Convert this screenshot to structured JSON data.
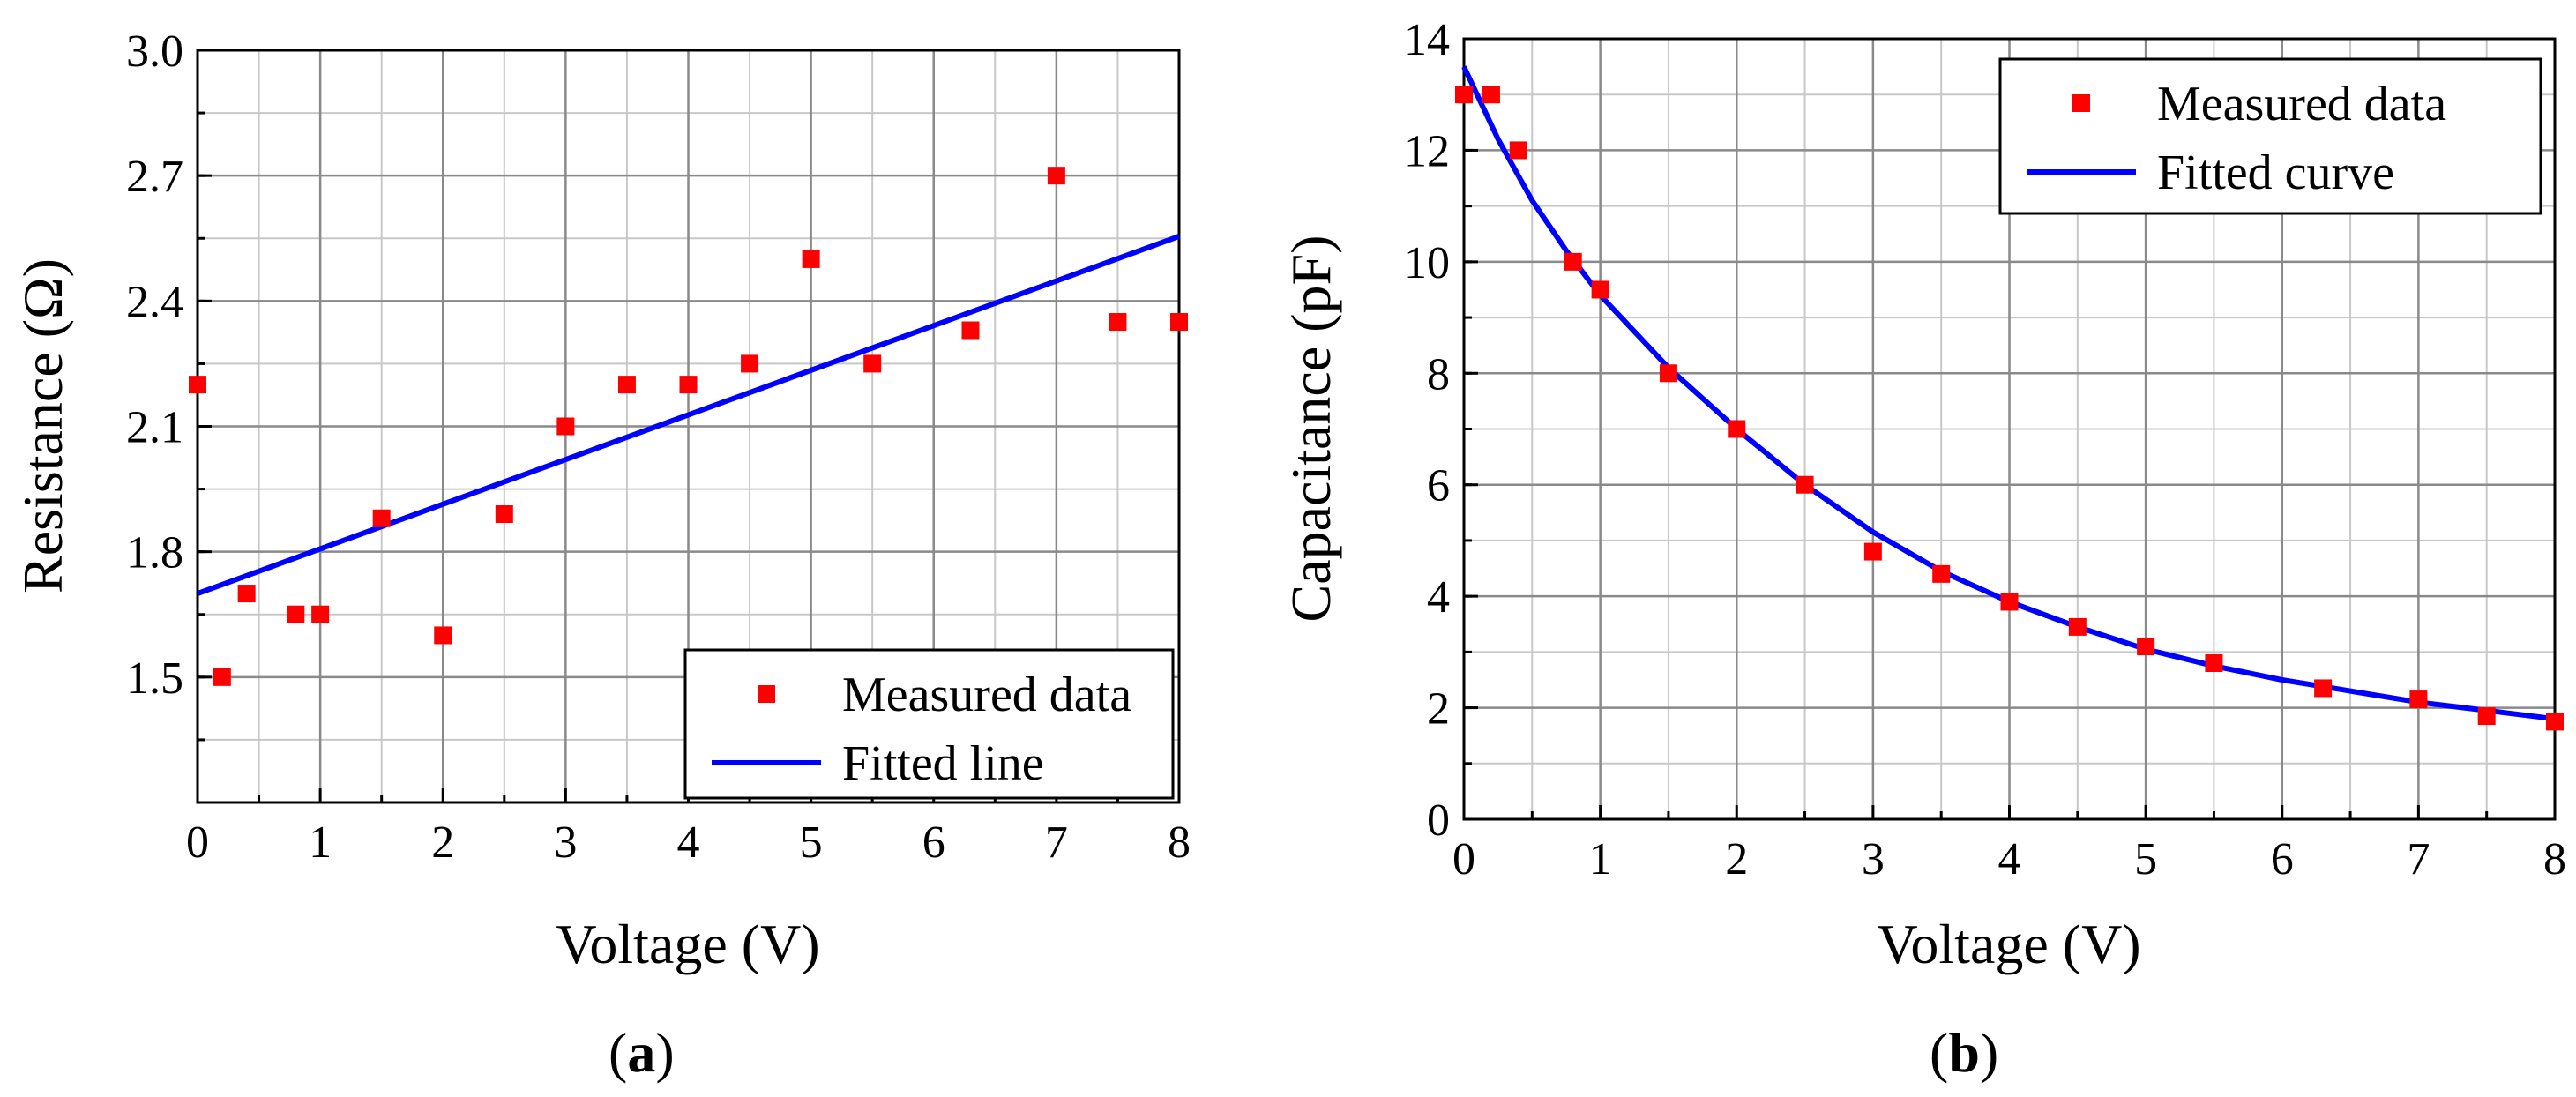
{
  "chart_data": [
    {
      "type": "scatter",
      "panel_label": "a",
      "xlabel": "Voltage (V)",
      "ylabel": "Resistance (Ω)",
      "xlim": [
        0,
        8
      ],
      "ylim": [
        1.2,
        3.0
      ],
      "xticks": [
        0,
        1,
        2,
        3,
        4,
        5,
        6,
        7,
        8
      ],
      "yticks": [
        1.5,
        1.8,
        2.1,
        2.4,
        2.7,
        3.0
      ],
      "ytick_labels": [
        "1.5",
        "1.8",
        "2.1",
        "2.4",
        "2.7",
        "3.0"
      ],
      "grid": true,
      "legend_position": "bottom-right",
      "series": [
        {
          "name": "Measured data",
          "kind": "markers",
          "color": "#ff0000",
          "x": [
            0,
            0.2,
            0.4,
            0.8,
            1.0,
            1.5,
            2.0,
            2.5,
            3.0,
            3.5,
            4.0,
            4.5,
            5.0,
            5.5,
            6.3,
            7.0,
            7.5,
            8.0
          ],
          "y": [
            2.2,
            1.5,
            1.7,
            1.65,
            1.65,
            1.88,
            1.6,
            1.89,
            2.1,
            2.2,
            2.2,
            2.25,
            2.5,
            2.25,
            2.33,
            2.7,
            2.35,
            2.35
          ]
        },
        {
          "name": "Fitted line",
          "kind": "line",
          "color": "#0000ff",
          "x": [
            0,
            8
          ],
          "y": [
            1.7,
            2.555
          ]
        }
      ]
    },
    {
      "type": "scatter",
      "panel_label": "b",
      "xlabel": "Voltage (V)",
      "ylabel": "Capacitance (pF)",
      "xlim": [
        0,
        8
      ],
      "ylim": [
        0,
        14
      ],
      "xticks": [
        0,
        1,
        2,
        3,
        4,
        5,
        6,
        7,
        8
      ],
      "yticks": [
        0,
        2,
        4,
        6,
        8,
        10,
        12,
        14
      ],
      "ytick_labels": [
        "0",
        "2",
        "4",
        "6",
        "8",
        "10",
        "12",
        "14"
      ],
      "grid": true,
      "legend_position": "top-right",
      "series": [
        {
          "name": "Measured data",
          "kind": "markers",
          "color": "#ff0000",
          "x": [
            0,
            0.2,
            0.4,
            0.8,
            1.0,
            1.5,
            2.0,
            2.5,
            3.0,
            3.5,
            4.0,
            4.5,
            5.0,
            5.5,
            6.3,
            7.0,
            7.5,
            8.0
          ],
          "y": [
            13.0,
            13.0,
            12.0,
            10.0,
            9.5,
            8.0,
            7.0,
            6.0,
            4.8,
            4.4,
            3.9,
            3.45,
            3.1,
            2.8,
            2.35,
            2.15,
            1.85,
            1.75
          ]
        },
        {
          "name": "Fitted curve",
          "kind": "line",
          "color": "#0000ff",
          "x": [
            0,
            0.25,
            0.5,
            0.75,
            1.0,
            1.5,
            2.0,
            2.5,
            3.0,
            3.5,
            4.0,
            4.5,
            5.0,
            5.5,
            6.0,
            6.5,
            7.0,
            7.5,
            8.0
          ],
          "y": [
            13.5,
            12.2,
            11.1,
            10.2,
            9.4,
            8.1,
            7.0,
            6.0,
            5.15,
            4.45,
            3.9,
            3.45,
            3.05,
            2.75,
            2.5,
            2.3,
            2.1,
            1.95,
            1.8
          ]
        }
      ]
    }
  ]
}
